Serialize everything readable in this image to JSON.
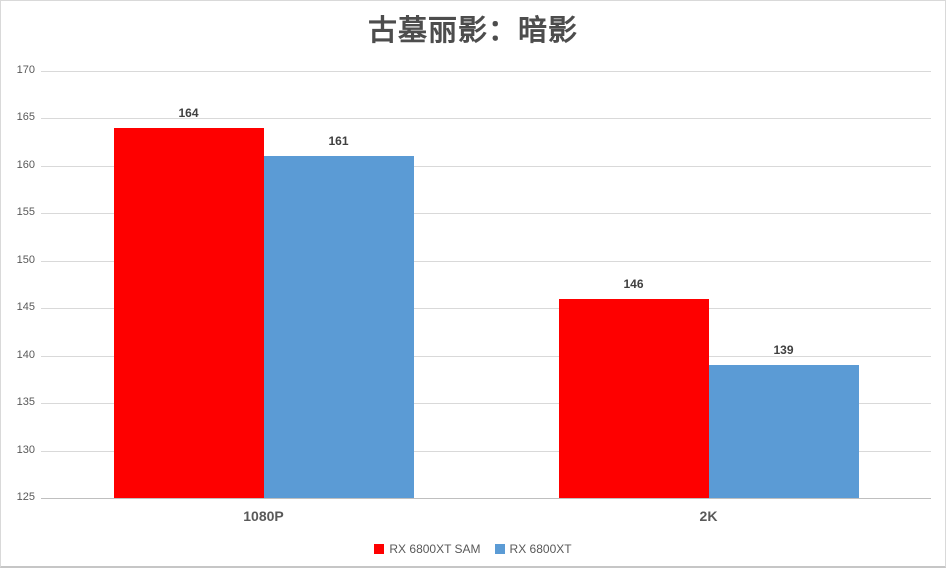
{
  "chart_data": {
    "type": "bar",
    "title": "古墓丽影：暗影",
    "categories": [
      "1080P",
      "2K"
    ],
    "series": [
      {
        "name": "RX 6800XT SAM",
        "color": "#fe0000",
        "values": [
          164,
          146
        ]
      },
      {
        "name": "RX 6800XT",
        "color": "#5b9bd5",
        "values": [
          161,
          139
        ]
      }
    ],
    "ylim": [
      125,
      170
    ],
    "ytick_step": 5,
    "ytick_labels": [
      "170",
      "165",
      "160",
      "155",
      "150",
      "145",
      "140",
      "135",
      "130",
      "125"
    ],
    "xlabel": "",
    "ylabel": "",
    "grid": "horizontal",
    "legend_position": "bottom",
    "colors": {
      "grid": "#d9d9d9",
      "axis_line": "#bfbfbf",
      "title_text": "#4d4d4d",
      "tick_text": "#595959",
      "value_label_text": "#404040"
    }
  }
}
